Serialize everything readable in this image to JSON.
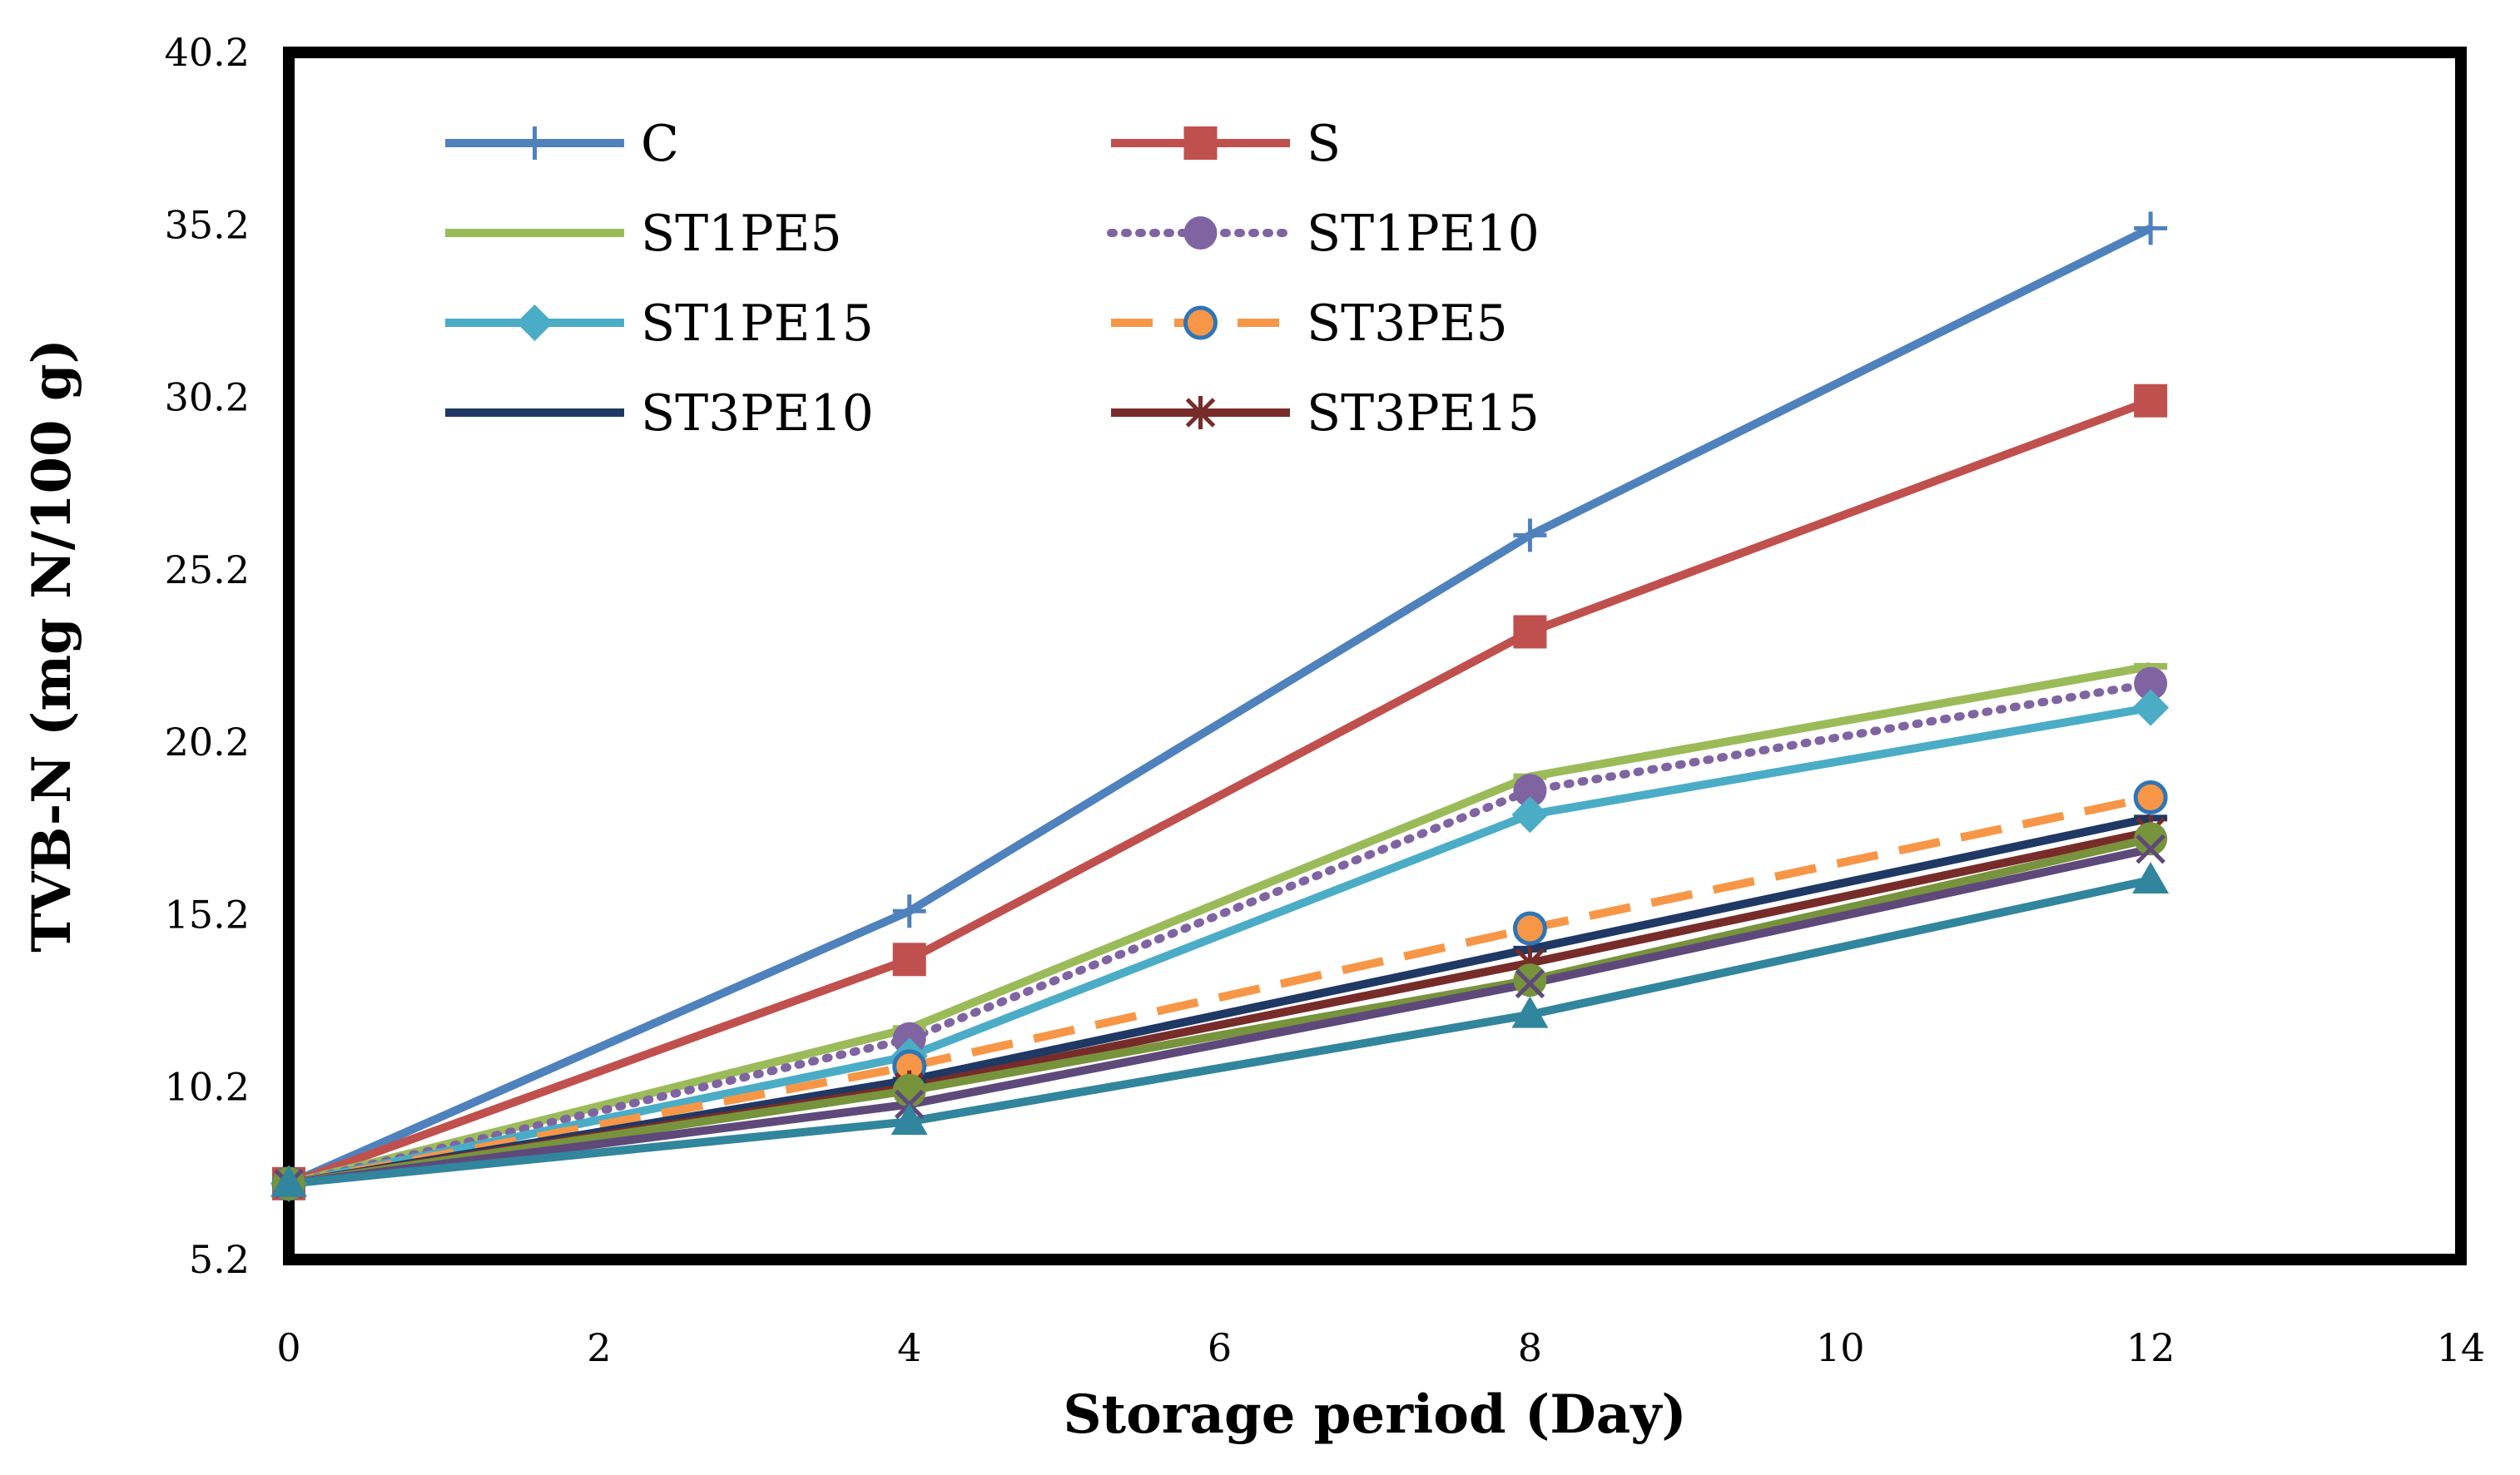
{
  "chart_data": {
    "type": "line",
    "title": "",
    "xlabel": "Storage period (Day)",
    "ylabel": "TVB-N (mg N/100 g)",
    "xlim": [
      0,
      14
    ],
    "ylim": [
      5.2,
      40.2
    ],
    "xticks": [
      "0",
      "2",
      "4",
      "6",
      "8",
      "10",
      "12",
      "14"
    ],
    "yticks": [
      "5.2",
      "10.2",
      "15.2",
      "20.2",
      "25.2",
      "30.2",
      "35.2",
      "40.2"
    ],
    "x": [
      0,
      4,
      8,
      12
    ],
    "grid": false,
    "legend_position": "top-left",
    "series": [
      {
        "name": "C",
        "color": "#4F81BD",
        "marker": "plus",
        "dash": "solid",
        "values": [
          7.4,
          15.3,
          26.2,
          35.1
        ],
        "in_legend": true
      },
      {
        "name": "S",
        "color": "#C0504D",
        "marker": "square",
        "dash": "solid",
        "values": [
          7.4,
          13.9,
          23.4,
          30.1
        ],
        "in_legend": true
      },
      {
        "name": "ST1PE5",
        "color": "#9BBB59",
        "marker": "dash",
        "dash": "solid",
        "values": [
          7.4,
          11.9,
          19.2,
          22.4
        ],
        "in_legend": true
      },
      {
        "name": "ST1PE10",
        "color": "#8064A2",
        "marker": "circle",
        "dash": "dotted",
        "values": [
          7.4,
          11.6,
          18.8,
          21.9
        ],
        "in_legend": true
      },
      {
        "name": "ST1PE15",
        "color": "#4BACC6",
        "marker": "diamond",
        "dash": "solid",
        "values": [
          7.4,
          11.1,
          18.1,
          21.2
        ],
        "in_legend": true
      },
      {
        "name": "ST3PE5",
        "color": "#F79646",
        "marker": "circle-ring",
        "dash": "dashed",
        "values": [
          7.4,
          10.8,
          14.8,
          18.6
        ],
        "in_legend": true
      },
      {
        "name": "ST3PE10",
        "color": "#1F3864",
        "marker": "dash",
        "dash": "solid",
        "values": [
          7.4,
          10.4,
          14.2,
          18.0
        ],
        "in_legend": true
      },
      {
        "name": "ST3PE15",
        "color": "#772C2A",
        "marker": "star",
        "dash": "solid",
        "values": [
          7.4,
          10.2,
          13.8,
          17.6
        ],
        "in_legend": true
      },
      {
        "name": "",
        "color": "#77933C",
        "marker": "circle",
        "dash": "solid",
        "values": [
          7.4,
          10.1,
          13.3,
          17.4
        ],
        "in_legend": false
      },
      {
        "name": "",
        "color": "#5F497A",
        "marker": "cross",
        "dash": "solid",
        "values": [
          7.4,
          9.7,
          13.2,
          17.1
        ],
        "in_legend": false
      },
      {
        "name": "",
        "color": "#31859C",
        "marker": "triangle",
        "dash": "solid",
        "values": [
          7.4,
          9.2,
          12.3,
          16.2
        ],
        "in_legend": false
      }
    ]
  }
}
